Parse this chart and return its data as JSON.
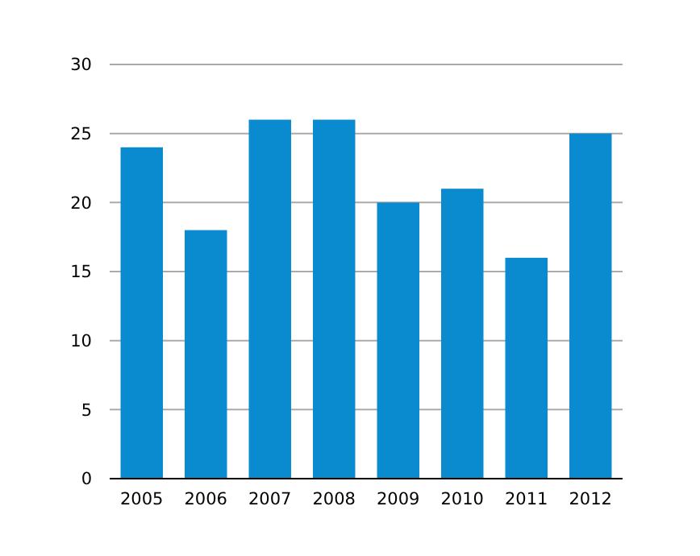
{
  "chart_data": {
    "type": "bar",
    "categories": [
      "2005",
      "2006",
      "2007",
      "2008",
      "2009",
      "2010",
      "2011",
      "2012"
    ],
    "values": [
      24,
      18,
      26,
      26,
      20,
      21,
      16,
      25
    ],
    "color": "#0a8bcf",
    "ylim": [
      0,
      30
    ],
    "yticks": [
      0,
      5,
      10,
      15,
      20,
      25,
      30
    ],
    "grid": "y"
  }
}
